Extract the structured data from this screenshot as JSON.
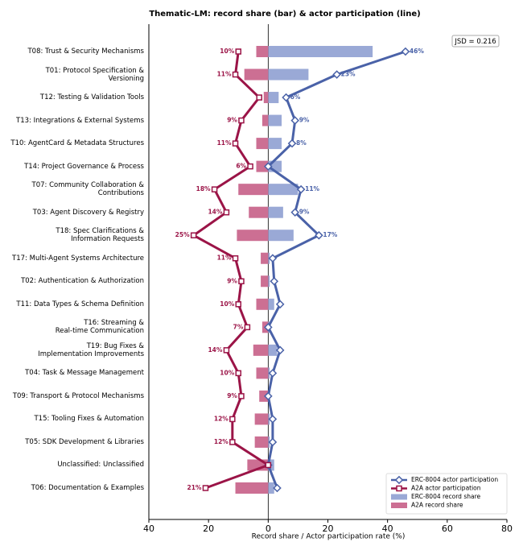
{
  "chart_data": {
    "type": "bar",
    "title": "Thematic-LM: record share (bar) & actor participation (line)",
    "x_label": "Record share / Actor participation rate (%)",
    "annotation": "JSD = 0.216",
    "legend": "lower right",
    "categories": [
      "T08: Trust & Security Mechanisms",
      "T01: Protocol Specification &\nVersioning",
      "T12: Testing & Validation Tools",
      "T13: Integrations & External Systems",
      "T10: AgentCard & Metadata Structures",
      "T14: Project Governance & Process",
      "T07: Community Collaboration &\nContributions",
      "T03: Agent Discovery & Registry",
      "T18: Spec Clarifications &\nInformation Requests",
      "T17: Multi-Agent Systems Architecture",
      "T02: Authentication & Authorization",
      "T11: Data Types & Schema Definition",
      "T16: Streaming &\nReal-time Communication",
      "T19: Bug Fixes &\nImplementation Improvements",
      "T04: Task & Message Management",
      "T09: Transport & Protocol Mechanisms",
      "T15: Tooling Fixes & Automation",
      "T05: SDK Development & Libraries",
      "Unclassified: Unclassified",
      "T06: Documentation & Examples"
    ],
    "series": [
      {
        "name": "ERC-8004 actor participation",
        "kind": "line",
        "side": "right",
        "color": "#4a62a8",
        "values": [
          46,
          23,
          6,
          9,
          8,
          0,
          11,
          9,
          17,
          1.5,
          2,
          4,
          0,
          4,
          1.5,
          0,
          1.5,
          1.5,
          0,
          3
        ],
        "value_labels": [
          "46%",
          "23%",
          "6%",
          "9%",
          "8%",
          null,
          "11%",
          "9%",
          "17%",
          null,
          null,
          null,
          null,
          null,
          null,
          null,
          null,
          null,
          null,
          null
        ]
      },
      {
        "name": "A2A actor participation",
        "kind": "line",
        "side": "left",
        "color": "#9b1447",
        "values": [
          10,
          11,
          3,
          9,
          11,
          6,
          18,
          14,
          25,
          11,
          9,
          10,
          7,
          14,
          10,
          9,
          12,
          12,
          0,
          21
        ],
        "value_labels": [
          "10%",
          "11%",
          null,
          "9%",
          "11%",
          "6%",
          "18%",
          "14%",
          "25%",
          "11%",
          "9%",
          "10%",
          "7%",
          "14%",
          "10%",
          "9%",
          "12%",
          "12%",
          null,
          "21%"
        ]
      },
      {
        "name": "ERC-8004 record share",
        "kind": "bar",
        "side": "right",
        "color": "#9aa9d6",
        "values": [
          35,
          13.5,
          3.5,
          4.5,
          4.5,
          4.5,
          10,
          5,
          8.5,
          0.5,
          0.5,
          2,
          0.5,
          3,
          0.5,
          0.5,
          0.5,
          0.5,
          2,
          2
        ]
      },
      {
        "name": "A2A record share",
        "kind": "bar",
        "side": "left",
        "color": "#cc6f93",
        "values": [
          4,
          8,
          1.5,
          2,
          4,
          4,
          10,
          6.5,
          10.5,
          2.5,
          2.5,
          4,
          2,
          5,
          4,
          3,
          4.5,
          4.5,
          7,
          11
        ]
      }
    ],
    "xlim": [
      -40,
      80
    ],
    "xticks": [
      {
        "value": -40,
        "label": "40"
      },
      {
        "value": -20,
        "label": "20"
      },
      0,
      20,
      40,
      60,
      80
    ]
  }
}
